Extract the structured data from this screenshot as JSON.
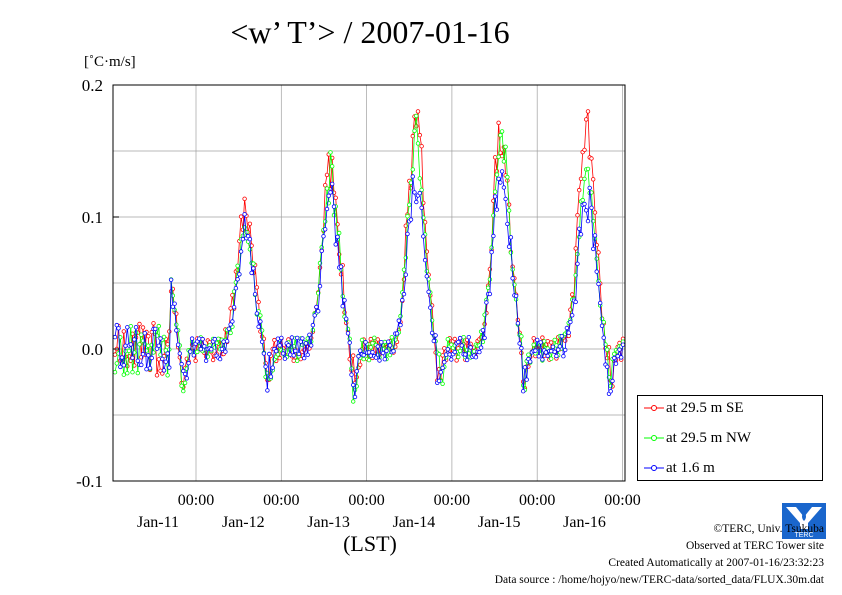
{
  "title": "<w’ T’> / 2007-01-16",
  "unit_label": "[˚C·m/s]",
  "x_axis_label": "(LST)",
  "credits": {
    "copyright": "©TERC, Univ. Tsukuba",
    "observed": "Observed at TERC Tower site",
    "created": "Created Automatically at 2007-01-16/23:32:23",
    "source": "Data source : /home/hojyo/new/TERC-data/sorted_data/FLUX.30m.dat"
  },
  "logo_text": "TERC",
  "colors": {
    "se": "#ff0000",
    "nw": "#00ff00",
    "low": "#0000ff",
    "grid": "#a0a0a0"
  },
  "chart_data": {
    "type": "line",
    "title": "<w’ T’> / 2007-01-16",
    "xlabel": "(LST)",
    "ylabel": "[˚C·m/s]",
    "ylim": [
      -0.1,
      0.2
    ],
    "yticks": [
      "0.2",
      "0.1",
      "0.0",
      "-0.1"
    ],
    "ytick_values": [
      0.2,
      0.1,
      0.0,
      -0.1
    ],
    "xlim_days": [
      0,
      6
    ],
    "xticks": [
      {
        "time": "00:00",
        "date": "Jan-11",
        "day": 1
      },
      {
        "time": "00:00",
        "date": "Jan-12",
        "day": 2
      },
      {
        "time": "00:00",
        "date": "Jan-13",
        "day": 3
      },
      {
        "time": "00:00",
        "date": "Jan-14",
        "day": 4
      },
      {
        "time": "00:00",
        "date": "Jan-15",
        "day": 5
      },
      {
        "time": "00:00",
        "date": "Jan-16",
        "day": 6
      }
    ],
    "grid": true,
    "legend_position": "right-bottom",
    "daily_peaks": {
      "at 29.5 m SE": [
        0.14,
        0.108,
        0.139,
        0.172,
        0.166,
        0.164
      ],
      "at 29.5 m NW": [
        0.124,
        0.095,
        0.132,
        0.16,
        0.158,
        0.14
      ],
      "at 1.6 m": [
        0.12,
        0.09,
        0.118,
        0.13,
        0.14,
        0.118
      ]
    },
    "series": [
      {
        "name": "at 29.5 m SE",
        "color": "#ff0000"
      },
      {
        "name": "at 29.5 m NW",
        "color": "#00ff00"
      },
      {
        "name": "at 1.6 m",
        "color": "#0000ff"
      }
    ]
  }
}
